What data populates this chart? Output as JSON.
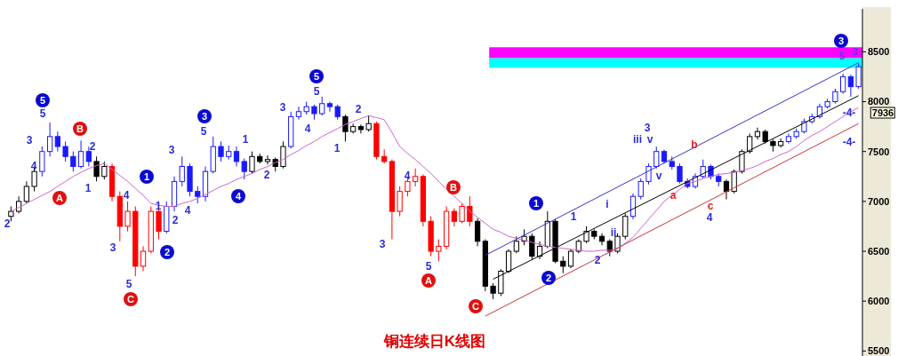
{
  "chart_data": {
    "type": "candlestick",
    "title": "铜连续日K线图",
    "categories": [
      null,
      null,
      null,
      null,
      null,
      null,
      null,
      null,
      null,
      null,
      null,
      null,
      null,
      null,
      null,
      null,
      null,
      null,
      null,
      null,
      null,
      null,
      null,
      null,
      null,
      null,
      null,
      null,
      null,
      null,
      null,
      null,
      null,
      null,
      null,
      null,
      null,
      null,
      null,
      null,
      null,
      null,
      null,
      null,
      null,
      null,
      null,
      null,
      null,
      null,
      null,
      null,
      null,
      null,
      null,
      null,
      null,
      null,
      null,
      null,
      null,
      null,
      null,
      null,
      null,
      null,
      null,
      null,
      null,
      null,
      null,
      null,
      null,
      null,
      null,
      null,
      null,
      null,
      null,
      null,
      null,
      null,
      null,
      null,
      null,
      null,
      null,
      null,
      null,
      null,
      null,
      null,
      null,
      null,
      null,
      null,
      null,
      null,
      null,
      null,
      null,
      null,
      null,
      null,
      null,
      null,
      null,
      null,
      null,
      null
    ],
    "ohlc": [
      [
        6850,
        6950,
        6800,
        6900
      ],
      [
        6900,
        7050,
        6880,
        7000
      ],
      [
        7000,
        7200,
        6980,
        7150
      ],
      [
        7150,
        7350,
        7100,
        7300
      ],
      [
        7300,
        7550,
        7250,
        7500
      ],
      [
        7500,
        7790,
        7450,
        7650
      ],
      [
        7650,
        7700,
        7500,
        7550
      ],
      [
        7550,
        7600,
        7400,
        7450
      ],
      [
        7450,
        7500,
        7300,
        7350
      ],
      [
        7350,
        7610,
        7330,
        7500
      ],
      [
        7500,
        7550,
        7350,
        7400
      ],
      [
        7400,
        7450,
        7200,
        7250
      ],
      [
        7250,
        7400,
        7220,
        7350
      ],
      [
        7350,
        7380,
        7000,
        7050
      ],
      [
        7050,
        7100,
        6600,
        6750
      ],
      [
        6750,
        7000,
        6700,
        6900
      ],
      [
        6900,
        6950,
        6250,
        6350
      ],
      [
        6350,
        6550,
        6300,
        6500
      ],
      [
        6500,
        6950,
        6480,
        6900
      ],
      [
        6900,
        6920,
        6620,
        6700
      ],
      [
        6700,
        7000,
        6680,
        6950
      ],
      [
        6950,
        7250,
        6900,
        7200
      ],
      [
        7200,
        7450,
        7150,
        7350
      ],
      [
        7350,
        7380,
        7050,
        7100
      ],
      [
        7100,
        7150,
        6980,
        7050
      ],
      [
        7050,
        7350,
        7000,
        7300
      ],
      [
        7300,
        7650,
        7280,
        7550
      ],
      [
        7550,
        7600,
        7400,
        7450
      ],
      [
        7450,
        7560,
        7420,
        7500
      ],
      [
        7500,
        7550,
        7350,
        7400
      ],
      [
        7400,
        7430,
        7220,
        7300
      ],
      [
        7300,
        7500,
        7280,
        7450
      ],
      [
        7450,
        7480,
        7380,
        7400
      ],
      [
        7400,
        7460,
        7370,
        7420
      ],
      [
        7420,
        7440,
        7300,
        7350
      ],
      [
        7350,
        7600,
        7330,
        7550
      ],
      [
        7550,
        7900,
        7530,
        7850
      ],
      [
        7850,
        7950,
        7820,
        7900
      ],
      [
        7900,
        8000,
        7870,
        7950
      ],
      [
        7950,
        7970,
        7820,
        7880
      ],
      [
        7880,
        8050,
        7860,
        7980
      ],
      [
        7980,
        8000,
        7900,
        7950
      ],
      [
        7950,
        7970,
        7820,
        7850
      ],
      [
        7850,
        7870,
        7600,
        7700
      ],
      [
        7700,
        7780,
        7680,
        7750
      ],
      [
        7750,
        7770,
        7680,
        7720
      ],
      [
        7720,
        7860,
        7700,
        7780
      ],
      [
        7780,
        7800,
        7420,
        7450
      ],
      [
        7450,
        7520,
        7380,
        7400
      ],
      [
        7400,
        7420,
        6620,
        6900
      ],
      [
        6900,
        7150,
        6850,
        7100
      ],
      [
        7100,
        7250,
        7050,
        7200
      ],
      [
        7200,
        7330,
        7150,
        7250
      ],
      [
        7250,
        7270,
        6750,
        6800
      ],
      [
        6800,
        6850,
        6450,
        6500
      ],
      [
        6500,
        6620,
        6400,
        6550
      ],
      [
        6550,
        6950,
        6520,
        6900
      ],
      [
        6900,
        6930,
        6750,
        6800
      ],
      [
        6800,
        6980,
        6780,
        6950
      ],
      [
        6950,
        7050,
        6750,
        6800
      ],
      [
        6800,
        6830,
        6550,
        6600
      ],
      [
        6600,
        6620,
        6100,
        6150
      ],
      [
        6150,
        6180,
        6020,
        6080
      ],
      [
        6080,
        6320,
        6050,
        6300
      ],
      [
        6300,
        6520,
        6280,
        6500
      ],
      [
        6500,
        6650,
        6480,
        6600
      ],
      [
        6600,
        6720,
        6560,
        6650
      ],
      [
        6650,
        6680,
        6420,
        6450
      ],
      [
        6450,
        6600,
        6420,
        6550
      ],
      [
        6550,
        6900,
        6530,
        6800
      ],
      [
        6800,
        6820,
        6380,
        6400
      ],
      [
        6400,
        6450,
        6280,
        6350
      ],
      [
        6350,
        6520,
        6330,
        6500
      ],
      [
        6500,
        6620,
        6480,
        6600
      ],
      [
        6600,
        6750,
        6580,
        6700
      ],
      [
        6700,
        6720,
        6620,
        6650
      ],
      [
        6650,
        6680,
        6560,
        6600
      ],
      [
        6600,
        6620,
        6450,
        6500
      ],
      [
        6500,
        6680,
        6480,
        6650
      ],
      [
        6650,
        6880,
        6620,
        6850
      ],
      [
        6850,
        7080,
        6820,
        7050
      ],
      [
        7050,
        7230,
        7020,
        7200
      ],
      [
        7200,
        7380,
        7170,
        7350
      ],
      [
        7350,
        7550,
        7330,
        7500
      ],
      [
        7500,
        7520,
        7380,
        7400
      ],
      [
        7400,
        7450,
        7320,
        7350
      ],
      [
        7350,
        7380,
        7180,
        7200
      ],
      [
        7200,
        7230,
        7130,
        7150
      ],
      [
        7150,
        7280,
        7130,
        7250
      ],
      [
        7250,
        7420,
        7230,
        7350
      ],
      [
        7350,
        7370,
        7220,
        7250
      ],
      [
        7250,
        7280,
        7150,
        7200
      ],
      [
        7200,
        7220,
        7020,
        7100
      ],
      [
        7100,
        7320,
        7080,
        7300
      ],
      [
        7300,
        7520,
        7280,
        7500
      ],
      [
        7500,
        7680,
        7480,
        7650
      ],
      [
        7650,
        7740,
        7620,
        7700
      ],
      [
        7700,
        7720,
        7580,
        7600
      ],
      [
        7600,
        7620,
        7500,
        7560
      ],
      [
        7560,
        7630,
        7540,
        7600
      ],
      [
        7600,
        7680,
        7580,
        7650
      ],
      [
        7650,
        7730,
        7630,
        7700
      ],
      [
        7700,
        7830,
        7680,
        7800
      ],
      [
        7800,
        7880,
        7780,
        7850
      ],
      [
        7850,
        7980,
        7830,
        7950
      ],
      [
        7950,
        8030,
        7930,
        8000
      ],
      [
        8000,
        8130,
        7980,
        8100
      ],
      [
        8100,
        8280,
        8080,
        8250
      ],
      [
        8250,
        8270,
        8050,
        8150
      ],
      [
        8150,
        8380,
        8130,
        8350
      ]
    ],
    "colors": [
      "#000000",
      "#000000",
      "#000000",
      "#000000",
      "#1a1aff",
      "#1a1aff",
      "#1a1aff",
      "#1a1aff",
      "#1a1aff",
      "#1a1aff",
      "#1a1aff",
      "#000000",
      "#000000",
      "#ff0000",
      "#ff0000",
      "#ff0000",
      "#ff0000",
      "#ff0000",
      "#ff0000",
      "#ff0000",
      "#1a1aff",
      "#1a1aff",
      "#1a1aff",
      "#1a1aff",
      "#1a1aff",
      "#1a1aff",
      "#1a1aff",
      "#1a1aff",
      "#1a1aff",
      "#1a1aff",
      "#1a1aff",
      "#000000",
      "#000000",
      "#000000",
      "#000000",
      "#000000",
      "#1a1aff",
      "#1a1aff",
      "#1a1aff",
      "#1a1aff",
      "#1a1aff",
      "#1a1aff",
      "#1a1aff",
      "#000000",
      "#000000",
      "#000000",
      "#000000",
      "#ff0000",
      "#ff0000",
      "#ff0000",
      "#ff0000",
      "#ff0000",
      "#ff0000",
      "#ff0000",
      "#ff0000",
      "#ff0000",
      "#ff0000",
      "#ff0000",
      "#ff0000",
      "#ff0000",
      "#000000",
      "#000000",
      "#000000",
      "#000000",
      "#000000",
      "#000000",
      "#000000",
      "#000000",
      "#000000",
      "#000000",
      "#000000",
      "#000000",
      "#000000",
      "#000000",
      "#000000",
      "#000000",
      "#000000",
      "#000000",
      "#000000",
      "#000000",
      "#1a1aff",
      "#1a1aff",
      "#1a1aff",
      "#1a1aff",
      "#1a1aff",
      "#1a1aff",
      "#1a1aff",
      "#1a1aff",
      "#1a1aff",
      "#1a1aff",
      "#1a1aff",
      "#1a1aff",
      "#000000",
      "#000000",
      "#000000",
      "#000000",
      "#000000",
      "#000000",
      "#000000",
      "#000000",
      "#1a1aff",
      "#1a1aff",
      "#1a1aff",
      "#1a1aff",
      "#1a1aff",
      "#1a1aff",
      "#1a1aff",
      "#1a1aff",
      "#1a1aff",
      "#1a1aff"
    ],
    "series": [
      {
        "type": "line",
        "color": "#cc66cc",
        "values": [
          6900,
          6940,
          6980,
          7020,
          7060,
          7100,
          7150,
          7200,
          7250,
          7290,
          7330,
          7360,
          7380,
          7320,
          7260,
          7200,
          7130,
          7060,
          6980,
          6960,
          6950,
          6950,
          6980,
          7000,
          7030,
          7070,
          7110,
          7150,
          7180,
          7220,
          7250,
          7280,
          7320,
          7350,
          7390,
          7420,
          7470,
          7510,
          7560,
          7600,
          7650,
          7690,
          7730,
          7770,
          7800,
          7830,
          7860,
          7840,
          7820,
          7690,
          7550,
          7480,
          7420,
          7350,
          7280,
          7200,
          7120,
          7050,
          6980,
          6900,
          6840,
          6780,
          6720,
          6690,
          6650,
          6630,
          6610,
          6590,
          6570,
          6550,
          6540,
          6530,
          6520,
          6510,
          6500,
          6500,
          6510,
          6510,
          6520,
          6580,
          6640,
          6730,
          6820,
          6910,
          7000,
          7060,
          7120,
          7180,
          7200,
          7230,
          7250,
          7270,
          7280,
          7290,
          7310,
          7330,
          7360,
          7400,
          7430,
          7470,
          7500,
          7550,
          7610,
          7660,
          7700,
          7750,
          7800,
          7850,
          7900,
          7940
        ]
      },
      {
        "type": "line",
        "color": "#3333cc",
        "values": [
          null,
          null,
          null,
          null,
          null,
          null,
          null,
          null,
          null,
          null,
          null,
          null,
          null,
          null,
          null,
          null,
          null,
          null,
          null,
          null,
          null,
          null,
          null,
          null,
          null,
          null,
          null,
          null,
          null,
          null,
          null,
          null,
          null,
          null,
          null,
          null,
          null,
          null,
          null,
          null,
          null,
          null,
          null,
          null,
          null,
          null,
          null,
          null,
          null,
          null,
          null,
          null,
          null,
          null,
          null,
          null,
          null,
          null,
          null,
          null,
          null,
          6460,
          null,
          null,
          null,
          null,
          null,
          null,
          null,
          null,
          null,
          null,
          null,
          null,
          null,
          null,
          null,
          null,
          null,
          null,
          null,
          null,
          null,
          null,
          null,
          null,
          null,
          null,
          null,
          null,
          null,
          null,
          null,
          null,
          null,
          null,
          null,
          null,
          null,
          null,
          null,
          null,
          null,
          null,
          null,
          null,
          null,
          null,
          null,
          8390
        ]
      },
      {
        "type": "line",
        "color": "#000000",
        "values": [
          null,
          null,
          null,
          null,
          null,
          null,
          null,
          null,
          null,
          null,
          null,
          null,
          null,
          null,
          null,
          null,
          null,
          null,
          null,
          null,
          null,
          null,
          null,
          null,
          null,
          null,
          null,
          null,
          null,
          null,
          null,
          null,
          null,
          null,
          null,
          null,
          null,
          null,
          null,
          null,
          null,
          null,
          null,
          null,
          null,
          null,
          null,
          null,
          null,
          null,
          null,
          null,
          null,
          null,
          null,
          null,
          null,
          null,
          null,
          null,
          null,
          null,
          6220,
          null,
          null,
          null,
          null,
          null,
          null,
          null,
          null,
          null,
          null,
          null,
          null,
          null,
          null,
          null,
          null,
          null,
          null,
          null,
          null,
          null,
          null,
          null,
          null,
          null,
          null,
          null,
          null,
          null,
          null,
          null,
          null,
          null,
          null,
          null,
          null,
          null,
          null,
          null,
          null,
          null,
          null,
          null,
          null,
          null,
          null,
          8060
        ]
      },
      {
        "type": "line",
        "color": "#cc3333",
        "values": [
          null,
          null,
          null,
          null,
          null,
          null,
          null,
          null,
          null,
          null,
          null,
          null,
          null,
          null,
          null,
          null,
          null,
          null,
          null,
          null,
          null,
          null,
          null,
          null,
          null,
          null,
          null,
          null,
          null,
          null,
          null,
          null,
          null,
          null,
          null,
          null,
          null,
          null,
          null,
          null,
          null,
          null,
          null,
          null,
          null,
          null,
          null,
          null,
          null,
          null,
          null,
          null,
          null,
          null,
          null,
          null,
          null,
          null,
          null,
          null,
          null,
          5850,
          null,
          null,
          null,
          null,
          null,
          null,
          null,
          null,
          null,
          null,
          null,
          null,
          null,
          null,
          null,
          null,
          null,
          null,
          null,
          null,
          null,
          null,
          null,
          null,
          null,
          null,
          null,
          null,
          null,
          null,
          null,
          null,
          null,
          null,
          null,
          null,
          null,
          null,
          null,
          null,
          null,
          null,
          null,
          null,
          null,
          null,
          null,
          7780
        ]
      }
    ],
    "bands": [
      {
        "axis": "y",
        "from": 8437,
        "to": 8545,
        "color": "#ff00ff"
      },
      {
        "axis": "y",
        "from": 8340,
        "to": 8437,
        "color": "#00ffff"
      }
    ],
    "annotations": [
      "5",
      "B",
      "A",
      "1",
      "2",
      "C",
      "3",
      "4",
      "5",
      "B",
      "A",
      "C",
      "1",
      "2",
      "3",
      "2",
      "3",
      "4",
      "5",
      "2",
      "1",
      "3",
      "4",
      "5",
      "1",
      "2",
      "3",
      "4",
      "5",
      "1",
      "2",
      "3",
      "4",
      "5",
      "1",
      "2",
      "3",
      "4",
      "5",
      "1",
      "2",
      "i",
      "ii",
      "iii",
      "v",
      "3",
      "v",
      "4",
      "5",
      "a",
      "b",
      "c",
      "3",
      "-4-",
      "-4-",
      "7936"
    ],
    "ylim": [
      5450,
      8930
    ],
    "yticks": [
      5500,
      6000,
      6500,
      7000,
      7500,
      8000,
      8500
    ],
    "tick_labels": "y"
  }
}
